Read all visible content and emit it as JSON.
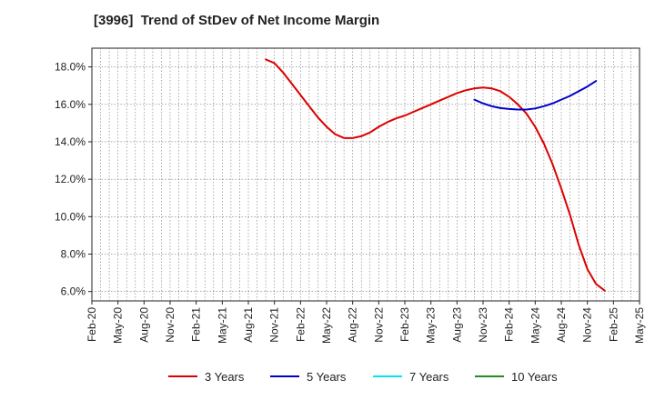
{
  "chart_data": {
    "type": "line",
    "title": "[3996]  Trend of StDev of Net Income Margin",
    "xlabel": "",
    "ylabel": "",
    "x_ticks": [
      "Feb-20",
      "May-20",
      "Aug-20",
      "Nov-20",
      "Feb-21",
      "May-21",
      "Aug-21",
      "Nov-21",
      "Feb-22",
      "May-22",
      "Aug-22",
      "Nov-22",
      "Feb-23",
      "May-23",
      "Aug-23",
      "Nov-23",
      "Feb-24",
      "May-24",
      "Aug-24",
      "Nov-24",
      "Feb-25",
      "May-25"
    ],
    "y_ticks": [
      "6.0%",
      "8.0%",
      "10.0%",
      "12.0%",
      "14.0%",
      "16.0%",
      "18.0%"
    ],
    "ylim": [
      5.5,
      19.0
    ],
    "y_unit": "%",
    "grid": true,
    "legend_position": "bottom",
    "series": [
      {
        "name": "3 Years",
        "color": "#dd0000",
        "points": [
          [
            "2021-10",
            18.4
          ],
          [
            "2021-11",
            18.2
          ],
          [
            "2021-12",
            17.7
          ],
          [
            "2022-01",
            17.1
          ],
          [
            "2022-02",
            16.5
          ],
          [
            "2022-03",
            15.9
          ],
          [
            "2022-04",
            15.3
          ],
          [
            "2022-05",
            14.8
          ],
          [
            "2022-06",
            14.4
          ],
          [
            "2022-07",
            14.2
          ],
          [
            "2022-08",
            14.2
          ],
          [
            "2022-09",
            14.3
          ],
          [
            "2022-10",
            14.5
          ],
          [
            "2022-11",
            14.8
          ],
          [
            "2022-12",
            15.05
          ],
          [
            "2023-01",
            15.25
          ],
          [
            "2023-02",
            15.4
          ],
          [
            "2023-03",
            15.6
          ],
          [
            "2023-04",
            15.8
          ],
          [
            "2023-05",
            16.0
          ],
          [
            "2023-06",
            16.2
          ],
          [
            "2023-07",
            16.4
          ],
          [
            "2023-08",
            16.6
          ],
          [
            "2023-09",
            16.75
          ],
          [
            "2023-10",
            16.85
          ],
          [
            "2023-11",
            16.9
          ],
          [
            "2023-12",
            16.85
          ],
          [
            "2024-01",
            16.7
          ],
          [
            "2024-02",
            16.4
          ],
          [
            "2024-03",
            16.0
          ],
          [
            "2024-04",
            15.5
          ],
          [
            "2024-05",
            14.8
          ],
          [
            "2024-06",
            13.9
          ],
          [
            "2024-07",
            12.8
          ],
          [
            "2024-08",
            11.5
          ],
          [
            "2024-09",
            10.1
          ],
          [
            "2024-10",
            8.5
          ],
          [
            "2024-11",
            7.2
          ],
          [
            "2024-12",
            6.4
          ],
          [
            "2025-01",
            6.05
          ]
        ]
      },
      {
        "name": "5 Years",
        "color": "#0000cc",
        "points": [
          [
            "2023-10",
            16.25
          ],
          [
            "2023-11",
            16.05
          ],
          [
            "2023-12",
            15.9
          ],
          [
            "2024-01",
            15.8
          ],
          [
            "2024-02",
            15.75
          ],
          [
            "2024-03",
            15.72
          ],
          [
            "2024-04",
            15.72
          ],
          [
            "2024-05",
            15.78
          ],
          [
            "2024-06",
            15.9
          ],
          [
            "2024-07",
            16.05
          ],
          [
            "2024-08",
            16.25
          ],
          [
            "2024-09",
            16.45
          ],
          [
            "2024-10",
            16.7
          ],
          [
            "2024-11",
            16.95
          ],
          [
            "2024-12",
            17.25
          ]
        ]
      },
      {
        "name": "7 Years",
        "color": "#00e5ee",
        "points": []
      },
      {
        "name": "10 Years",
        "color": "#228b22",
        "points": []
      }
    ]
  }
}
